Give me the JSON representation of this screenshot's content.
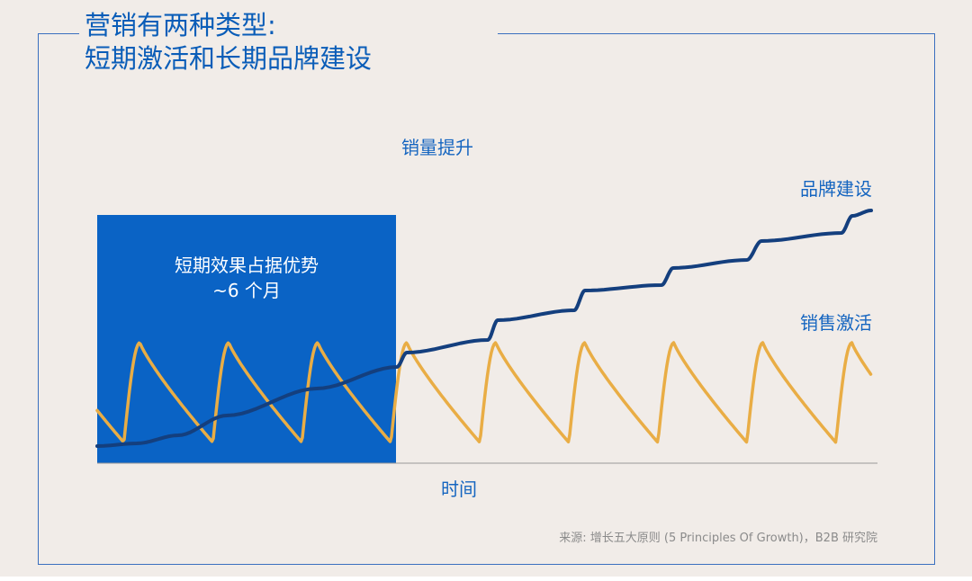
{
  "title": {
    "line1": "营销有两种类型:",
    "line2": "短期激活和长期品牌建设"
  },
  "labels": {
    "y_axis": "销量提升",
    "x_axis": "时间",
    "box_line1": "短期效果占据优势",
    "box_line2": "~6 个月",
    "brand_series": "品牌建设",
    "sales_series": "销售激活"
  },
  "source": "来源: 增长五大原则 (5 Principles Of Growth)，B2B 研究院",
  "colors": {
    "background": "#f1ece8",
    "frame": "#3a6fbf",
    "title_text": "#0a5db8",
    "label_text": "#1565c0",
    "box_fill": "#0a63c5",
    "brand_line": "#143f7e",
    "sales_line": "#e9ad45",
    "axis": "#999999"
  },
  "chart_data": {
    "type": "line",
    "xlabel": "时间",
    "ylabel": "销量提升",
    "series": [
      {
        "name": "品牌建设",
        "shape": "step-wise rising trend",
        "steps": 10,
        "color": "#143f7e"
      },
      {
        "name": "销售激活",
        "shape": "repeating sharp rise then gradual decay",
        "cycles": 9,
        "color": "#e9ad45"
      }
    ],
    "highlight_region": {
      "label": "短期效果占据优势",
      "sublabel": "~6 个月",
      "cycles_covered": 3
    },
    "grid": false,
    "legend": "inline labels at right"
  }
}
